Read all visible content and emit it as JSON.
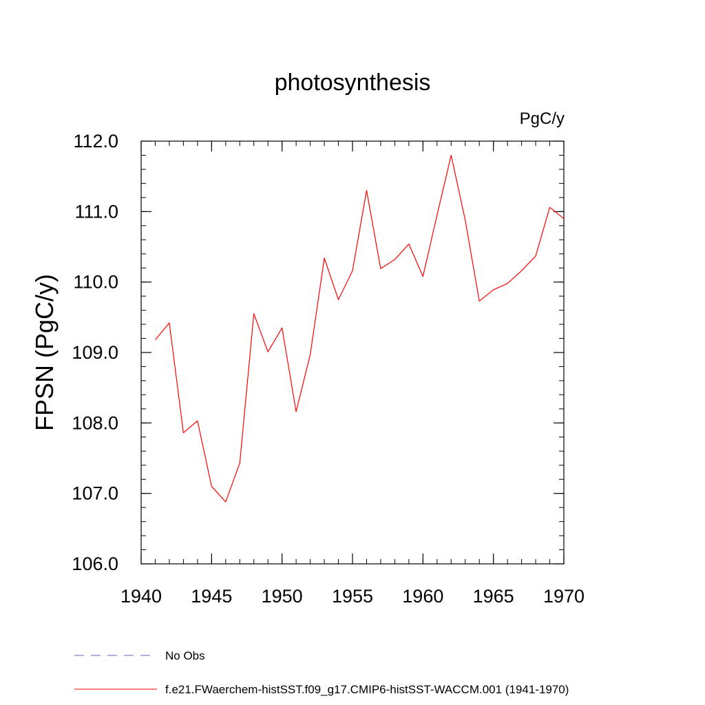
{
  "chart_data": {
    "type": "line",
    "title": "photosynthesis",
    "units_label": "PgC/y",
    "ylabel": "FPSN  (PgC/y)",
    "xlabel": "",
    "xlim": [
      1940,
      1970
    ],
    "ylim": [
      106.0,
      112.0
    ],
    "x_ticks": [
      1940,
      1945,
      1950,
      1955,
      1960,
      1965,
      1970
    ],
    "x_tick_labels": [
      "1940",
      "1945",
      "1950",
      "1955",
      "1960",
      "1965",
      "1970"
    ],
    "y_ticks": [
      106.0,
      107.0,
      108.0,
      109.0,
      110.0,
      111.0,
      112.0
    ],
    "y_tick_labels": [
      "106.0",
      "107.0",
      "108.0",
      "109.0",
      "110.0",
      "111.0",
      "112.0"
    ],
    "grid": false,
    "legend_position": "bottom-left",
    "series": [
      {
        "name": "f.e21.FWaerchem-histSST.f09_g17.CMIP6-histSST-WACCM.001 (1941-1970)",
        "color": "#ff0000",
        "dash": "solid",
        "x": [
          1941,
          1942,
          1943,
          1944,
          1945,
          1946,
          1947,
          1948,
          1949,
          1950,
          1951,
          1952,
          1953,
          1954,
          1955,
          1956,
          1957,
          1958,
          1959,
          1960,
          1961,
          1962,
          1963,
          1964,
          1965,
          1966,
          1967,
          1968,
          1969,
          1970
        ],
        "y": [
          109.18,
          109.42,
          107.86,
          108.03,
          107.1,
          106.88,
          107.43,
          109.55,
          109.01,
          109.35,
          108.16,
          108.97,
          110.34,
          109.75,
          110.16,
          111.3,
          110.19,
          110.32,
          110.54,
          110.08,
          110.95,
          111.8,
          110.88,
          109.73,
          109.89,
          109.98,
          110.16,
          110.37,
          111.06,
          110.9
        ]
      }
    ],
    "legend": [
      {
        "label": "No Obs",
        "color": "#6a5acd",
        "dash": "dashed"
      },
      {
        "label": "f.e21.FWaerchem-histSST.f09_g17.CMIP6-histSST-WACCM.001 (1941-1970)",
        "color": "#ff0000",
        "dash": "solid"
      }
    ]
  }
}
